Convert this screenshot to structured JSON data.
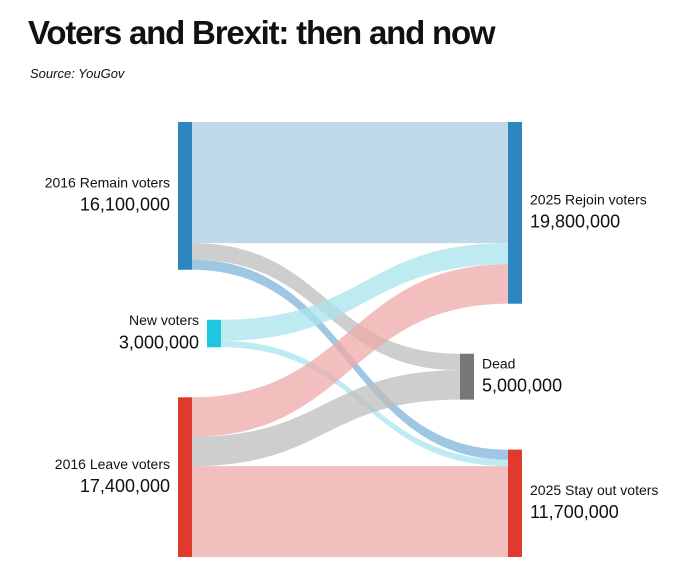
{
  "chart_data": {
    "type": "sankey",
    "title": "Voters and Brexit: then and now",
    "subtitle": "Source: YouGov",
    "nodes": [
      "2016 Remain voters",
      "New voters",
      "2016 Leave voters",
      "2025 Rejoin voters",
      "Dead",
      "2025 Stay out voters"
    ],
    "values": [
      16100000,
      3000000,
      17400000,
      19800000,
      5000000,
      11700000
    ],
    "value_labels": [
      "16,100,000",
      "3,000,000",
      "17,400,000",
      "19,800,000",
      "5,000,000",
      "11,700,000"
    ],
    "colors": [
      "#2e86c1",
      "#1ec8dc",
      "#e03a2f",
      "#2e86c1",
      "#777777",
      "#e03a2f"
    ],
    "links": [
      {
        "source": 0,
        "target": 3,
        "value": 13200000,
        "color": "#a9cce3"
      },
      {
        "source": 0,
        "target": 4,
        "value": 1800000,
        "color": "#bdbdbd"
      },
      {
        "source": 0,
        "target": 5,
        "value": 1100000,
        "color": "#7fb3d8"
      },
      {
        "source": 1,
        "target": 3,
        "value": 2300000,
        "color": "#a8e4ee"
      },
      {
        "source": 1,
        "target": 5,
        "value": 700000,
        "color": "#a8e4ee"
      },
      {
        "source": 2,
        "target": 3,
        "value": 4300000,
        "color": "#efaaa8"
      },
      {
        "source": 2,
        "target": 4,
        "value": 3200000,
        "color": "#bdbdbd"
      },
      {
        "source": 2,
        "target": 5,
        "value": 9900000,
        "color": "#efaaa8"
      }
    ]
  }
}
